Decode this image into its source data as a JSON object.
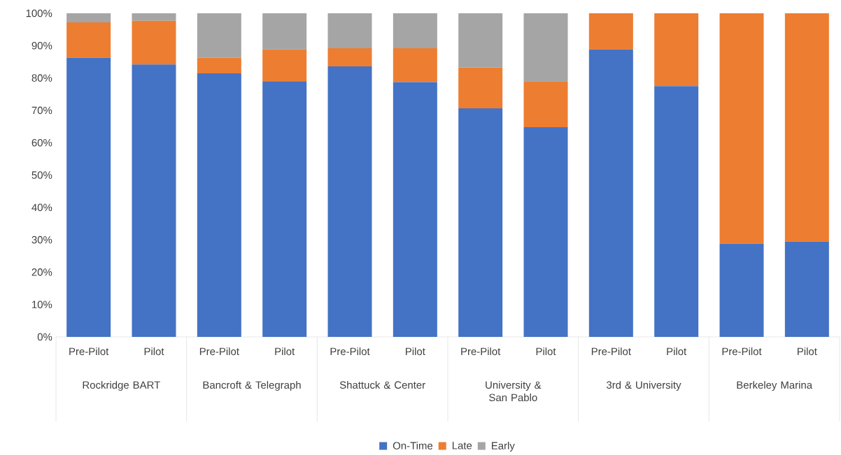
{
  "chart_data": {
    "type": "bar",
    "stacked": true,
    "categories": [
      "Pre-Pilot",
      "Pilot",
      "Pre-Pilot",
      "Pilot",
      "Pre-Pilot",
      "Pilot",
      "Pre-Pilot",
      "Pilot",
      "Pre-Pilot",
      "Pilot",
      "Pre-Pilot",
      "Pilot"
    ],
    "annotations": [
      "Rockridge BART",
      "Bancroft & Telegraph",
      "Shattuck & Center",
      "University & San Pablo",
      "3rd & University",
      "Berkeley Marina"
    ],
    "series": [
      {
        "name": "On-Time",
        "color": "#4472c4",
        "values": [
          86.3,
          84.2,
          81.4,
          79.0,
          83.6,
          78.7,
          70.6,
          64.8,
          88.8,
          77.5,
          28.8,
          29.5
        ]
      },
      {
        "name": "Late",
        "color": "#ed7d31",
        "values": [
          10.9,
          13.5,
          4.9,
          9.8,
          5.6,
          10.5,
          12.6,
          14.2,
          11.2,
          22.5,
          71.2,
          70.5
        ]
      },
      {
        "name": "Early",
        "color": "#a5a5a5",
        "values": [
          2.8,
          2.3,
          13.7,
          11.2,
          10.8,
          10.8,
          16.8,
          21.0,
          0,
          0,
          0,
          0
        ]
      }
    ],
    "ylim": [
      0,
      100
    ],
    "yticks": [
      {
        "value": 0,
        "label": "0%"
      },
      {
        "value": 10,
        "label": "10%"
      },
      {
        "value": 20,
        "label": "20%"
      },
      {
        "value": 30,
        "label": "30%"
      },
      {
        "value": 40,
        "label": "40%"
      },
      {
        "value": 50,
        "label": "50%"
      },
      {
        "value": 60,
        "label": "60%"
      },
      {
        "value": 70,
        "label": "70%"
      },
      {
        "value": 80,
        "label": "80%"
      },
      {
        "value": 90,
        "label": "90%"
      },
      {
        "value": 100,
        "label": "100%"
      }
    ],
    "legend": "bottom"
  }
}
